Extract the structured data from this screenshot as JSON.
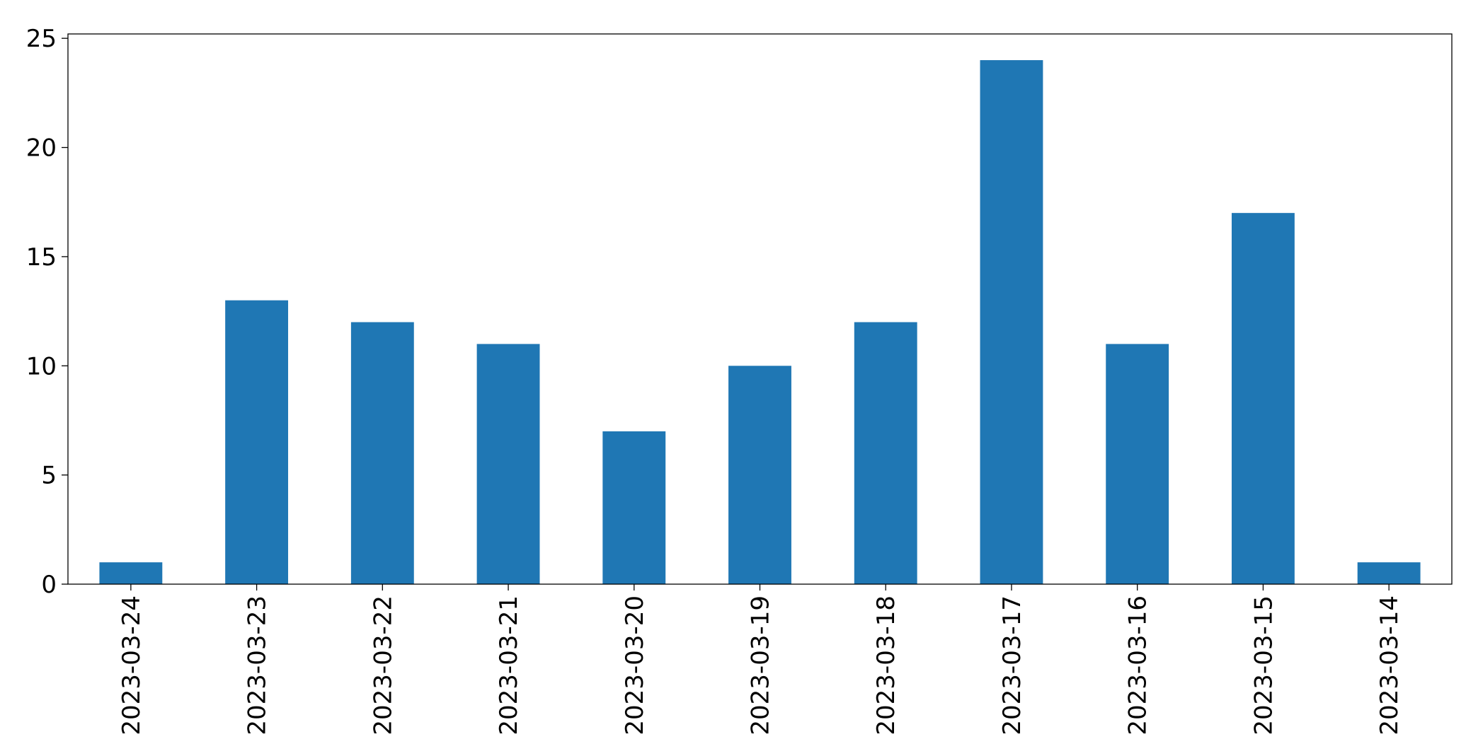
{
  "chart_data": {
    "type": "bar",
    "categories": [
      "2023-03-24",
      "2023-03-23",
      "2023-03-22",
      "2023-03-21",
      "2023-03-20",
      "2023-03-19",
      "2023-03-18",
      "2023-03-17",
      "2023-03-16",
      "2023-03-15",
      "2023-03-14"
    ],
    "values": [
      1,
      13,
      12,
      11,
      7,
      10,
      12,
      24,
      11,
      17,
      1
    ],
    "color": "#1f77b4",
    "ylim": [
      0,
      25.2
    ],
    "yticks": [
      0,
      5,
      10,
      15,
      20,
      25
    ],
    "grid": false
  }
}
